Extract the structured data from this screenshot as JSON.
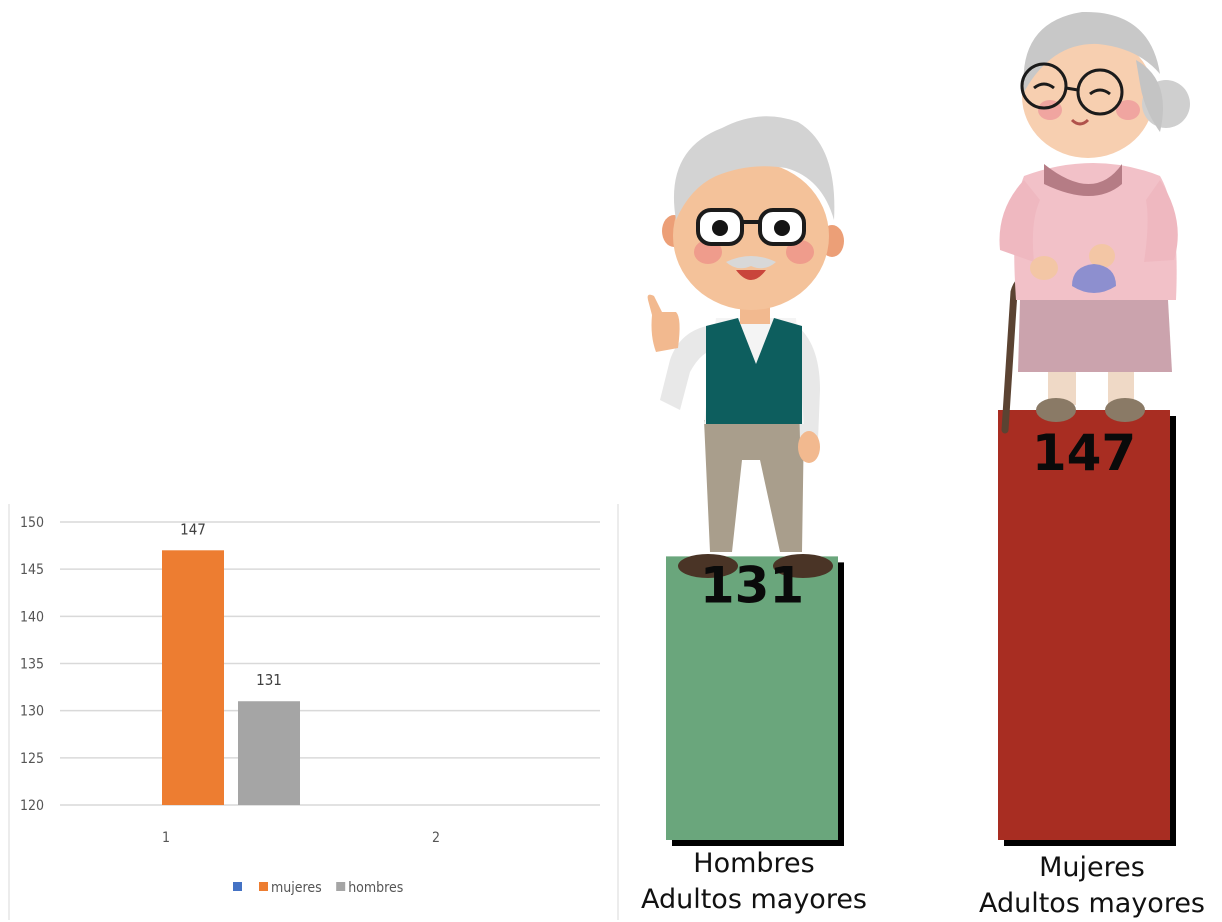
{
  "chart_data": [
    {
      "type": "bar",
      "categories": [
        "1",
        "2"
      ],
      "series": [
        {
          "name": "",
          "color": "#4472C4",
          "values": [
            null,
            null
          ]
        },
        {
          "name": "mujeres",
          "color": "#ED7D31",
          "values": [
            147,
            null
          ]
        },
        {
          "name": "hombres",
          "color": "#A5A5A5",
          "values": [
            131,
            null
          ]
        }
      ],
      "yticks": [
        "150",
        "145",
        "140",
        "135",
        "130",
        "125",
        "120"
      ],
      "ylim": [
        120,
        150
      ],
      "grid": true,
      "legend": "bottom",
      "data_labels": [
        "147",
        "131"
      ]
    },
    {
      "type": "bar",
      "categories": [
        {
          "line1": "Hombres",
          "line2": "Adultos mayores"
        },
        {
          "line1": "Mujeres",
          "line2": "Adultos mayores"
        }
      ],
      "values": [
        131,
        147
      ],
      "value_labels": [
        "131",
        "147"
      ],
      "colors": [
        "#6AA67C",
        "#A82D22"
      ]
    }
  ],
  "illustrations": {
    "left": "elderly-man-thumbs-up",
    "right": "elderly-woman-with-cane-and-purse"
  }
}
